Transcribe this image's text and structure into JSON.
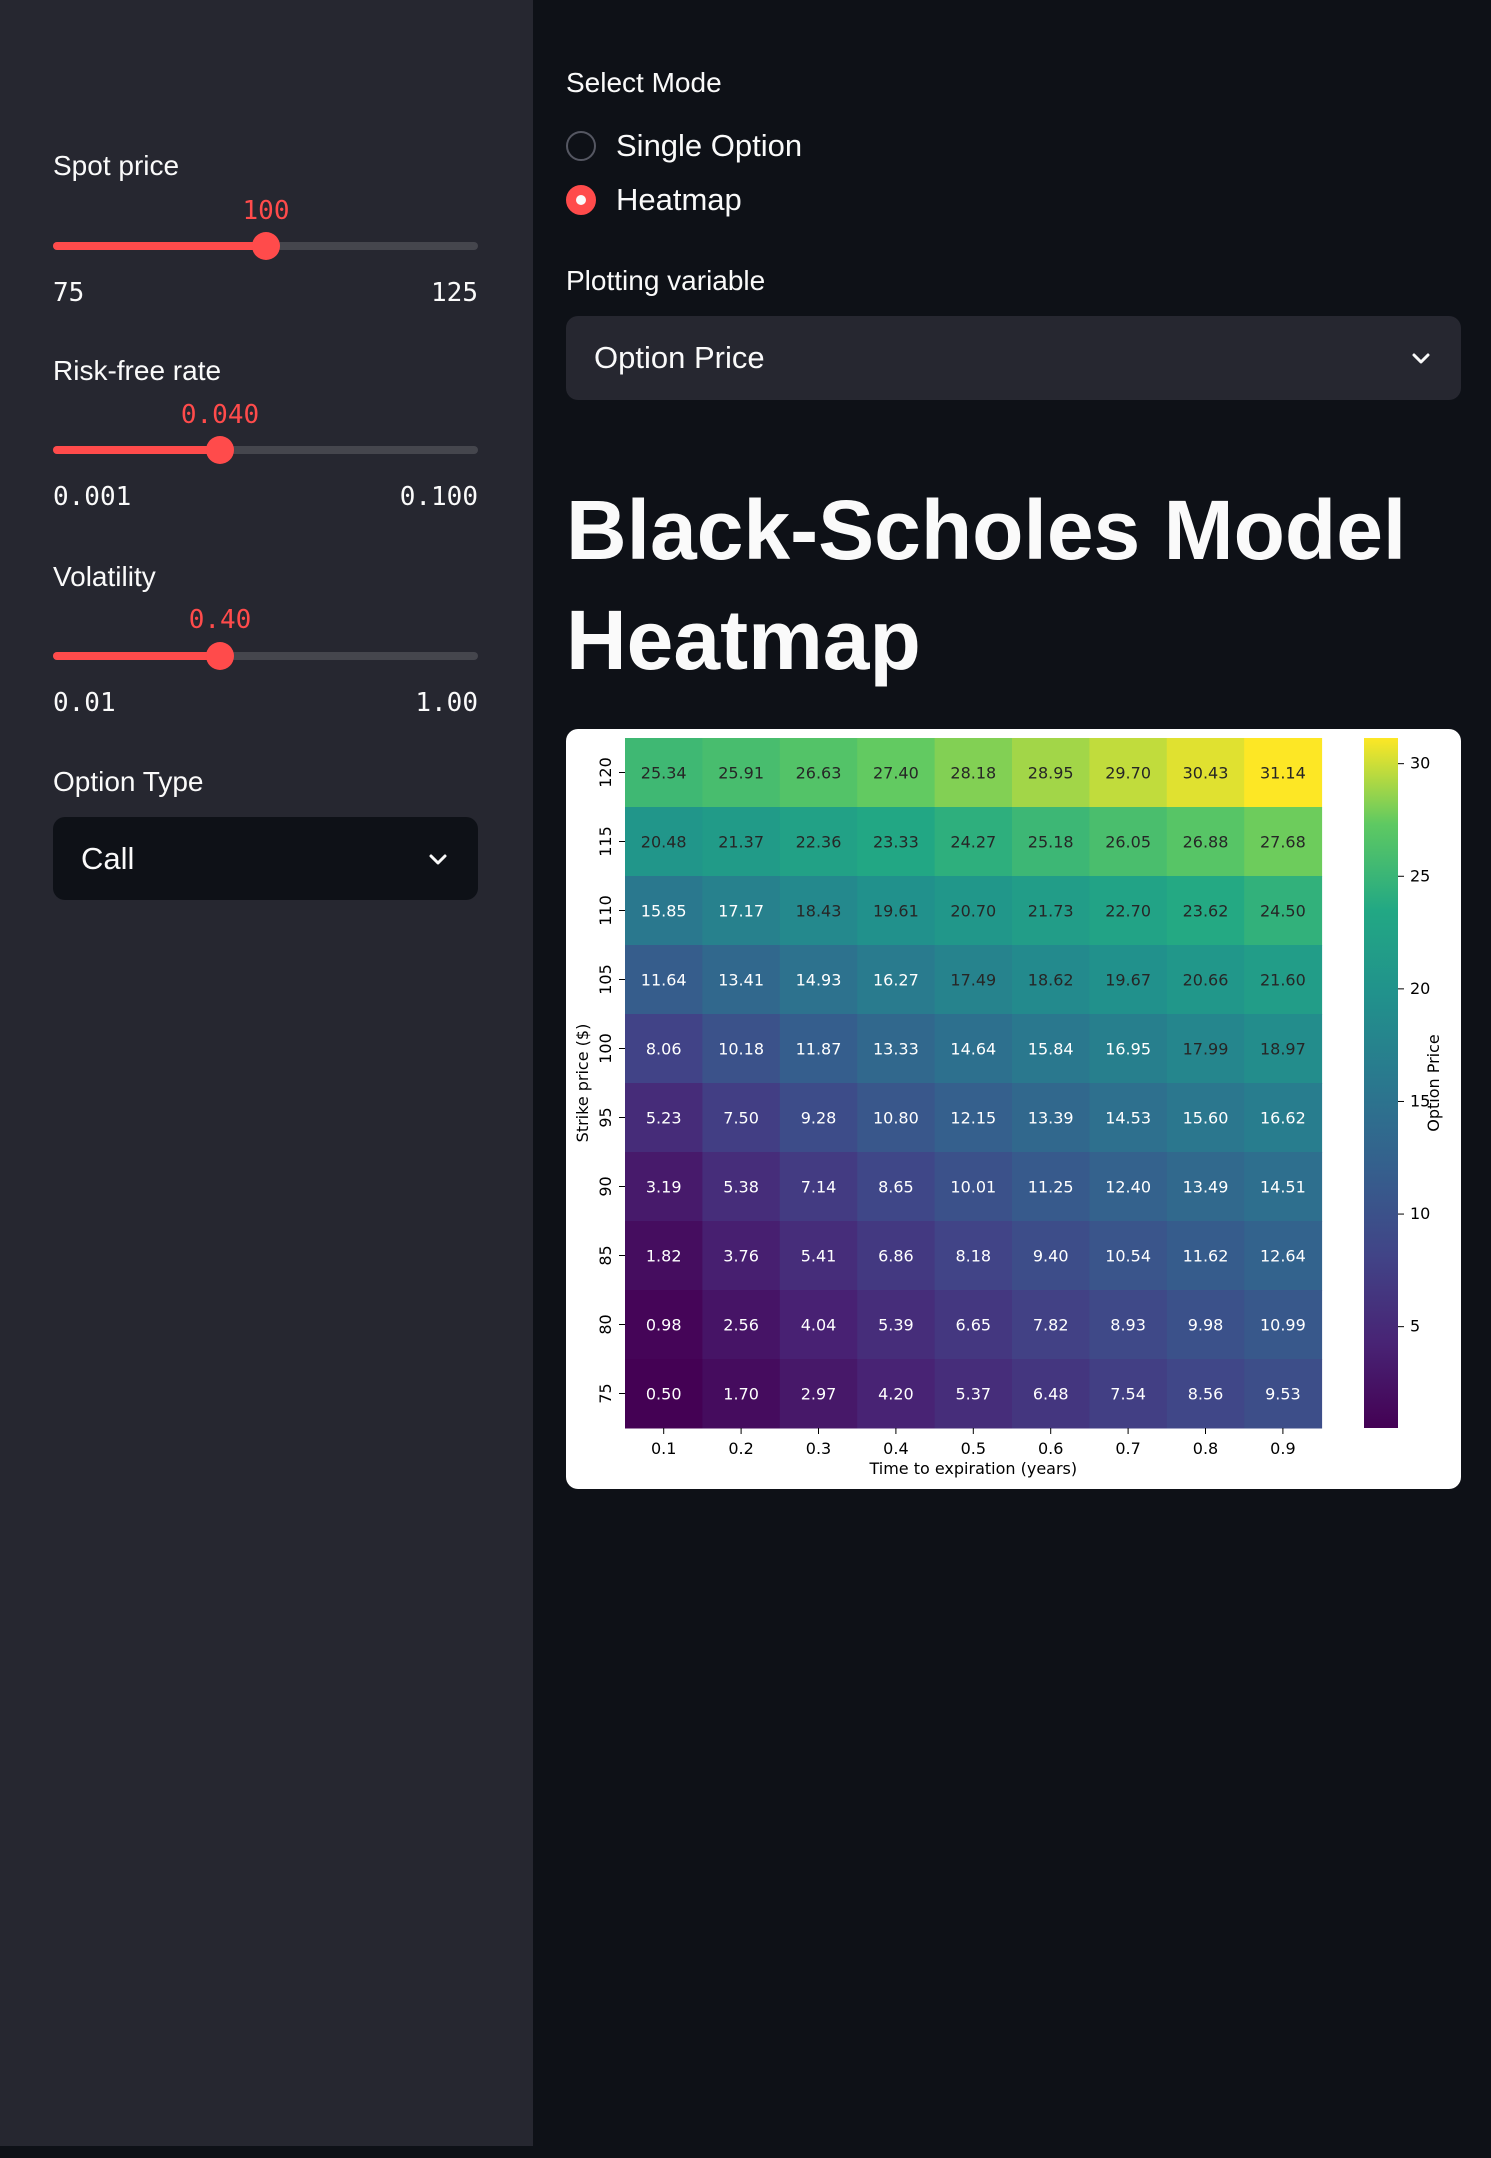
{
  "sidebar": {
    "spot_price": {
      "label": "Spot price",
      "value": "100",
      "min": "75",
      "max": "125",
      "fraction": 0.5
    },
    "risk_free_rate": {
      "label": "Risk-free rate",
      "value": "0.040",
      "min": "0.001",
      "max": "0.100",
      "fraction": 0.394
    },
    "volatility": {
      "label": "Volatility",
      "value": "0.40",
      "min": "0.01",
      "max": "1.00",
      "fraction": 0.394
    },
    "option_type": {
      "label": "Option Type",
      "selected": "Call"
    }
  },
  "main": {
    "mode": {
      "label": "Select Mode",
      "options": [
        {
          "label": "Single Option",
          "selected": false
        },
        {
          "label": "Heatmap",
          "selected": true
        }
      ]
    },
    "plotting_variable": {
      "label": "Plotting variable",
      "selected": "Option Price"
    },
    "title": "Black-Scholes Model Heatmap"
  },
  "colors": {
    "accent": "#ff4b4b",
    "sidebar_bg": "#262730",
    "main_bg": "#0e1117",
    "select_bg": "#262730",
    "dark_select_bg": "#0e1117"
  },
  "chart_data": {
    "type": "heatmap",
    "xlabel": "Time to expiration (years)",
    "ylabel": "Strike price ($)",
    "colorbar_label": "Option Price",
    "colormap": "viridis",
    "x": [
      "0.1",
      "0.2",
      "0.3",
      "0.4",
      "0.5",
      "0.6",
      "0.7",
      "0.8",
      "0.9"
    ],
    "y": [
      "120",
      "115",
      "110",
      "105",
      "100",
      "95",
      "90",
      "85",
      "80",
      "75"
    ],
    "values": [
      [
        25.34,
        25.91,
        26.63,
        27.4,
        28.18,
        28.95,
        29.7,
        30.43,
        31.14
      ],
      [
        20.48,
        21.37,
        22.36,
        23.33,
        24.27,
        25.18,
        26.05,
        26.88,
        27.68
      ],
      [
        15.85,
        17.17,
        18.43,
        19.61,
        20.7,
        21.73,
        22.7,
        23.62,
        24.5
      ],
      [
        11.64,
        13.41,
        14.93,
        16.27,
        17.49,
        18.62,
        19.67,
        20.66,
        21.6
      ],
      [
        8.06,
        10.18,
        11.87,
        13.33,
        14.64,
        15.84,
        16.95,
        17.99,
        18.97
      ],
      [
        5.23,
        7.5,
        9.28,
        10.8,
        12.15,
        13.39,
        14.53,
        15.6,
        16.62
      ],
      [
        3.19,
        5.38,
        7.14,
        8.65,
        10.01,
        11.25,
        12.4,
        13.49,
        14.51
      ],
      [
        1.82,
        3.76,
        5.41,
        6.86,
        8.18,
        9.4,
        10.54,
        11.62,
        12.64
      ],
      [
        0.98,
        2.56,
        4.04,
        5.39,
        6.65,
        7.82,
        8.93,
        9.98,
        10.99
      ],
      [
        0.5,
        1.7,
        2.97,
        4.2,
        5.37,
        6.48,
        7.54,
        8.56,
        9.53
      ]
    ],
    "value_labels": [
      [
        "25.34",
        "25.91",
        "26.63",
        "27.40",
        "28.18",
        "28.95",
        "29.70",
        "30.43",
        "31.14"
      ],
      [
        "20.48",
        "21.37",
        "22.36",
        "23.33",
        "24.27",
        "25.18",
        "26.05",
        "26.88",
        "27.68"
      ],
      [
        "15.85",
        "17.17",
        "18.43",
        "19.61",
        "20.70",
        "21.73",
        "22.70",
        "23.62",
        "24.50"
      ],
      [
        "11.64",
        "13.41",
        "14.93",
        "16.27",
        "17.49",
        "18.62",
        "19.67",
        "20.66",
        "21.60"
      ],
      [
        "8.06",
        "10.18",
        "11.87",
        "13.33",
        "14.64",
        "15.84",
        "16.95",
        "17.99",
        "18.97"
      ],
      [
        "5.23",
        "7.50",
        "9.28",
        "10.80",
        "12.15",
        "13.39",
        "14.53",
        "15.60",
        "16.62"
      ],
      [
        "3.19",
        "5.38",
        "7.14",
        "8.65",
        "10.01",
        "11.25",
        "12.40",
        "13.49",
        "14.51"
      ],
      [
        "1.82",
        "3.76",
        "5.41",
        "6.86",
        "8.18",
        "9.40",
        "10.54",
        "11.62",
        "12.64"
      ],
      [
        "0.98",
        "2.56",
        "4.04",
        "5.39",
        "6.65",
        "7.82",
        "8.93",
        "9.98",
        "10.99"
      ],
      [
        "0.50",
        "1.70",
        "2.97",
        "4.20",
        "5.37",
        "6.48",
        "7.54",
        "8.56",
        "9.53"
      ]
    ],
    "colorbar_ticks": [
      "5",
      "10",
      "15",
      "20",
      "25",
      "30"
    ],
    "colorbar_tick_values": [
      5,
      10,
      15,
      20,
      25,
      30
    ],
    "color_range": [
      0.5,
      31.14
    ]
  }
}
